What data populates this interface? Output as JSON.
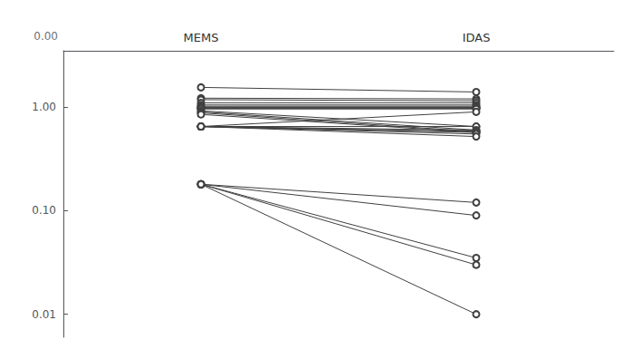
{
  "chart_data": {
    "type": "line",
    "categories": [
      "MEMS",
      "IDAS"
    ],
    "color": "#404040",
    "marker": "open circle",
    "log": "y",
    "grid": false,
    "ylim": [
      0.006,
      3.5
    ],
    "yticks": [
      0.01,
      {
        "value": 0.1,
        "label": "0.10"
      },
      {
        "value": 1,
        "label": "1.00"
      }
    ],
    "annotations": [
      "0.00"
    ],
    "series": [
      {
        "values": [
          1.55,
          1.4
        ]
      },
      {
        "values": [
          1.22,
          1.2
        ]
      },
      {
        "values": [
          1.18,
          1.15
        ]
      },
      {
        "values": [
          1.1,
          1.1
        ]
      },
      {
        "values": [
          1.05,
          1.05
        ]
      },
      {
        "values": [
          1.02,
          1.02
        ]
      },
      {
        "values": [
          1.0,
          1.0
        ]
      },
      {
        "values": [
          0.99,
          0.99
        ]
      },
      {
        "values": [
          0.98,
          0.98
        ]
      },
      {
        "values": [
          0.97,
          0.97
        ]
      },
      {
        "values": [
          0.96,
          0.96
        ]
      },
      {
        "values": [
          0.92,
          0.65
        ]
      },
      {
        "values": [
          0.9,
          0.6
        ]
      },
      {
        "values": [
          0.88,
          0.58
        ]
      },
      {
        "values": [
          0.85,
          0.57
        ]
      },
      {
        "values": [
          0.65,
          0.9
        ]
      },
      {
        "values": [
          0.65,
          0.65
        ]
      },
      {
        "values": [
          0.65,
          0.6
        ]
      },
      {
        "values": [
          0.65,
          0.58
        ]
      },
      {
        "values": [
          0.65,
          0.57
        ]
      },
      {
        "values": [
          0.65,
          0.55
        ]
      },
      {
        "values": [
          0.65,
          0.52
        ]
      },
      {
        "values": [
          0.18,
          0.12
        ]
      },
      {
        "values": [
          0.18,
          0.09
        ]
      },
      {
        "values": [
          0.18,
          0.035
        ]
      },
      {
        "values": [
          0.18,
          0.03
        ]
      },
      {
        "values": [
          0.18,
          0.01
        ]
      }
    ]
  }
}
